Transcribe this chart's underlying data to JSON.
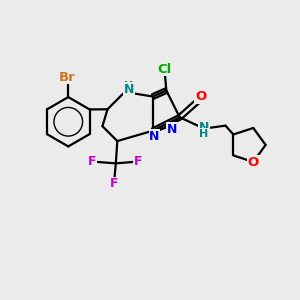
{
  "background_color": "#ebebeb",
  "figsize": [
    3.0,
    3.0
  ],
  "dpi": 100,
  "colors": {
    "bond": "#000000",
    "Br": "#cc7722",
    "Cl": "#00aa00",
    "O": "#ff0000",
    "N": "#0000dd",
    "NH": "#008888",
    "F": "#cc00cc"
  }
}
